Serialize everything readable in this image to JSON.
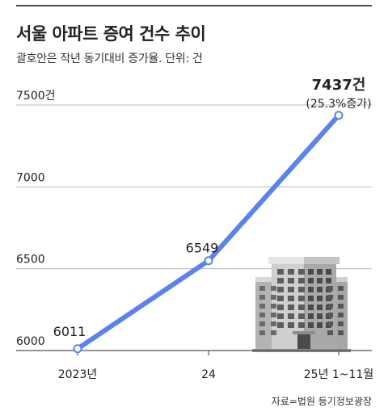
{
  "title": "서울 아파트 증여 건수 추이",
  "subtitle": "괄호안은 작년 동기대비 증가율. 단위: 건",
  "source": "자료=법원 등기정보광장",
  "colors": {
    "line": "#5b82ee",
    "grid": "#bbbbbb",
    "axis": "#666666",
    "text": "#222222"
  },
  "chart_data": {
    "type": "line",
    "categories": [
      "2023년",
      "24",
      "25년 1~11월"
    ],
    "series": [
      {
        "values": [
          6011,
          6549,
          7437
        ]
      }
    ],
    "data_labels": [
      "6011",
      "6549",
      "7437건"
    ],
    "annotation": "(25.3%증가)",
    "y_ticks": [
      {
        "value": 6000,
        "label": "6000"
      },
      {
        "value": 6500,
        "label": "6500"
      },
      {
        "value": 7000,
        "label": "7000"
      },
      {
        "value": 7500,
        "label": "7500건"
      }
    ],
    "ylim": [
      6000,
      7500
    ],
    "grid": true,
    "xlabel": "",
    "ylabel": ""
  },
  "illustration": {
    "icon": "apartment-building-icon"
  }
}
